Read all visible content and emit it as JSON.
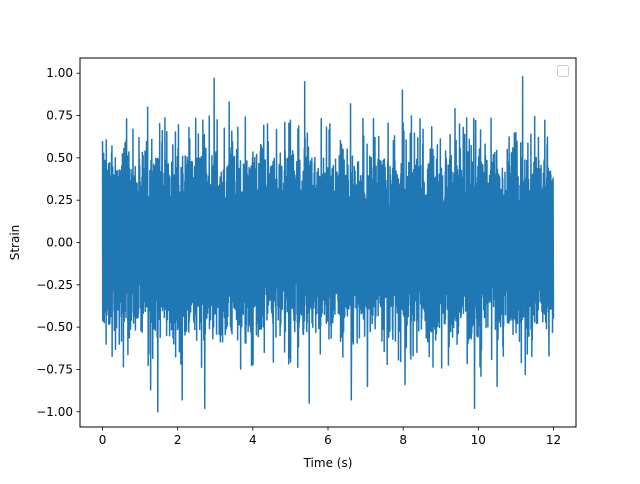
{
  "chart_data": {
    "type": "line",
    "title": "",
    "xlabel": "Time (s)",
    "ylabel": "Strain",
    "xlim": [
      -0.6,
      12.6
    ],
    "ylim": [
      -1.09,
      1.09
    ],
    "x_ticks": [
      0,
      2,
      4,
      6,
      8,
      10,
      12
    ],
    "x_tick_labels": [
      "0",
      "2",
      "4",
      "6",
      "8",
      "10",
      "12"
    ],
    "y_ticks": [
      -1.0,
      -0.75,
      -0.5,
      -0.25,
      0.0,
      0.25,
      0.5,
      0.75,
      1.0
    ],
    "y_tick_labels": [
      "−1.00",
      "−0.75",
      "−0.50",
      "−0.25",
      "0.00",
      "0.25",
      "0.50",
      "0.75",
      "1.00"
    ],
    "grid": false,
    "legend": {
      "location": "upper right",
      "entries": []
    },
    "series": [
      {
        "color": "#1f77b4",
        "x_range": [
          0,
          12
        ],
        "typical_amplitude": 0.5,
        "peaks": [
          {
            "x": 0.0,
            "y": 0.6
          },
          {
            "x": 0.25,
            "y": 0.57
          },
          {
            "x": 0.6,
            "y": 0.59
          },
          {
            "x": 0.97,
            "y": 0.62
          },
          {
            "x": 1.47,
            "y": 1.0
          },
          {
            "x": 1.47,
            "y": -1.0
          },
          {
            "x": 1.28,
            "y": -0.87
          },
          {
            "x": 1.2,
            "y": 0.8
          },
          {
            "x": 2.12,
            "y": 0.65
          },
          {
            "x": 2.12,
            "y": -0.93
          },
          {
            "x": 2.72,
            "y": -0.98
          },
          {
            "x": 2.97,
            "y": 0.97
          },
          {
            "x": 3.37,
            "y": 0.83
          },
          {
            "x": 3.6,
            "y": 0.68
          },
          {
            "x": 4.85,
            "y": 0.71
          },
          {
            "x": 5.2,
            "y": 0.67
          },
          {
            "x": 5.38,
            "y": 0.95
          },
          {
            "x": 5.5,
            "y": -0.95
          },
          {
            "x": 6.05,
            "y": 0.7
          },
          {
            "x": 6.6,
            "y": 0.82
          },
          {
            "x": 6.62,
            "y": -0.93
          },
          {
            "x": 7.05,
            "y": -0.85
          },
          {
            "x": 7.98,
            "y": 0.9
          },
          {
            "x": 8.05,
            "y": -0.84
          },
          {
            "x": 9.38,
            "y": 0.79
          },
          {
            "x": 9.9,
            "y": -0.98
          },
          {
            "x": 9.93,
            "y": 0.72
          },
          {
            "x": 10.07,
            "y": -0.79
          },
          {
            "x": 10.5,
            "y": -0.85
          },
          {
            "x": 11.18,
            "y": 0.98
          },
          {
            "x": 11.25,
            "y": -0.78
          },
          {
            "x": 11.6,
            "y": 0.62
          },
          {
            "x": 11.88,
            "y": -0.67
          },
          {
            "x": 12.0,
            "y": 0.55
          },
          {
            "x": 12.0,
            "y": -0.45
          }
        ]
      }
    ]
  }
}
